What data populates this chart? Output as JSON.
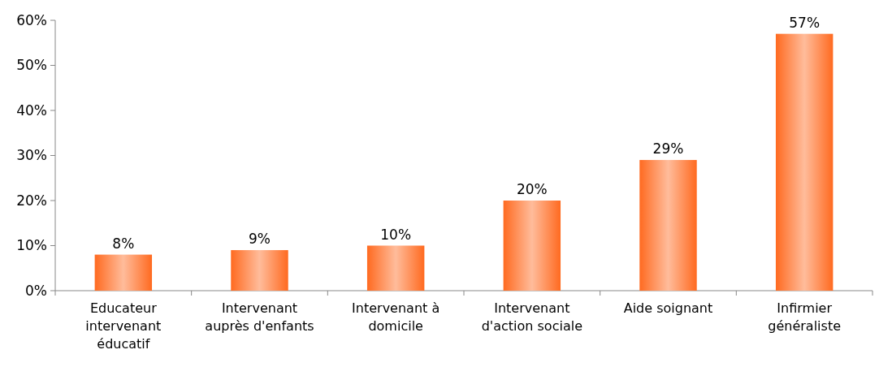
{
  "chart_data": {
    "type": "bar",
    "categories": [
      "Educateur intervenant éducatif",
      "Intervenant auprès d'enfants",
      "Intervenant à domicile",
      "Intervenant d'action sociale",
      "Aide soignant",
      "Infirmier généraliste"
    ],
    "values": [
      8,
      9,
      10,
      20,
      29,
      57
    ],
    "value_labels": [
      "8%",
      "9%",
      "10%",
      "20%",
      "29%",
      "57%"
    ],
    "color": "#ff6a20",
    "ylim": [
      0,
      60
    ],
    "yticks": [
      {
        "value": 0,
        "label": "0%"
      },
      {
        "value": 10,
        "label": "10%"
      },
      {
        "value": 20,
        "label": "20%"
      },
      {
        "value": 30,
        "label": "30%"
      },
      {
        "value": 40,
        "label": "40%"
      },
      {
        "value": 50,
        "label": "50%"
      },
      {
        "value": 60,
        "label": "60%"
      }
    ],
    "grid": false
  }
}
